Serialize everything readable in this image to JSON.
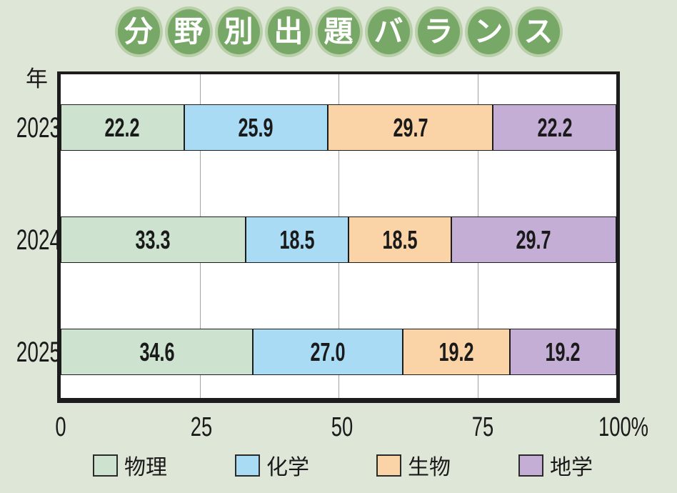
{
  "title": {
    "text": "分野別出題バランス",
    "characters": [
      "分",
      "野",
      "別",
      "出",
      "題",
      "バ",
      "ラ",
      "ン",
      "ス"
    ],
    "oval_color": "#78a867",
    "ring_color": "#b8cfa8",
    "text_color": "#ffffff"
  },
  "colors": {
    "page_background": "#dee6d8",
    "plot_background": "#ffffff",
    "plot_border": "#1c1c1c",
    "gridline": "#a0a3a0",
    "text": "#1a1a1a"
  },
  "chart_data": {
    "type": "bar",
    "orientation": "horizontal",
    "stacked": true,
    "unit_label": "年",
    "categories": [
      "2023",
      "2024",
      "2025"
    ],
    "series": [
      {
        "name": "物理",
        "color": "#cde3d0",
        "values": [
          22.2,
          33.3,
          34.6
        ]
      },
      {
        "name": "化学",
        "color": "#a9dbf4",
        "values": [
          25.9,
          18.5,
          27.0
        ]
      },
      {
        "name": "生物",
        "color": "#fad3a6",
        "values": [
          29.7,
          18.5,
          19.2
        ]
      },
      {
        "name": "地学",
        "color": "#c4aed5",
        "values": [
          22.2,
          29.7,
          19.2
        ]
      }
    ],
    "value_labels": [
      [
        "22.2",
        "25.9",
        "29.7",
        "22.2"
      ],
      [
        "33.3",
        "18.5",
        "18.5",
        "29.7"
      ],
      [
        "34.6",
        "27.0",
        "19.2",
        "19.2"
      ]
    ],
    "xlim": [
      0,
      100
    ],
    "x_ticks": [
      {
        "value": 0,
        "label": "0"
      },
      {
        "value": 25,
        "label": "25"
      },
      {
        "value": 50,
        "label": "50"
      },
      {
        "value": 75,
        "label": "75"
      },
      {
        "value": 100,
        "label": "100%"
      }
    ],
    "gridlines_at": [
      25,
      50,
      75
    ],
    "grid": true,
    "legend_position": "bottom"
  }
}
